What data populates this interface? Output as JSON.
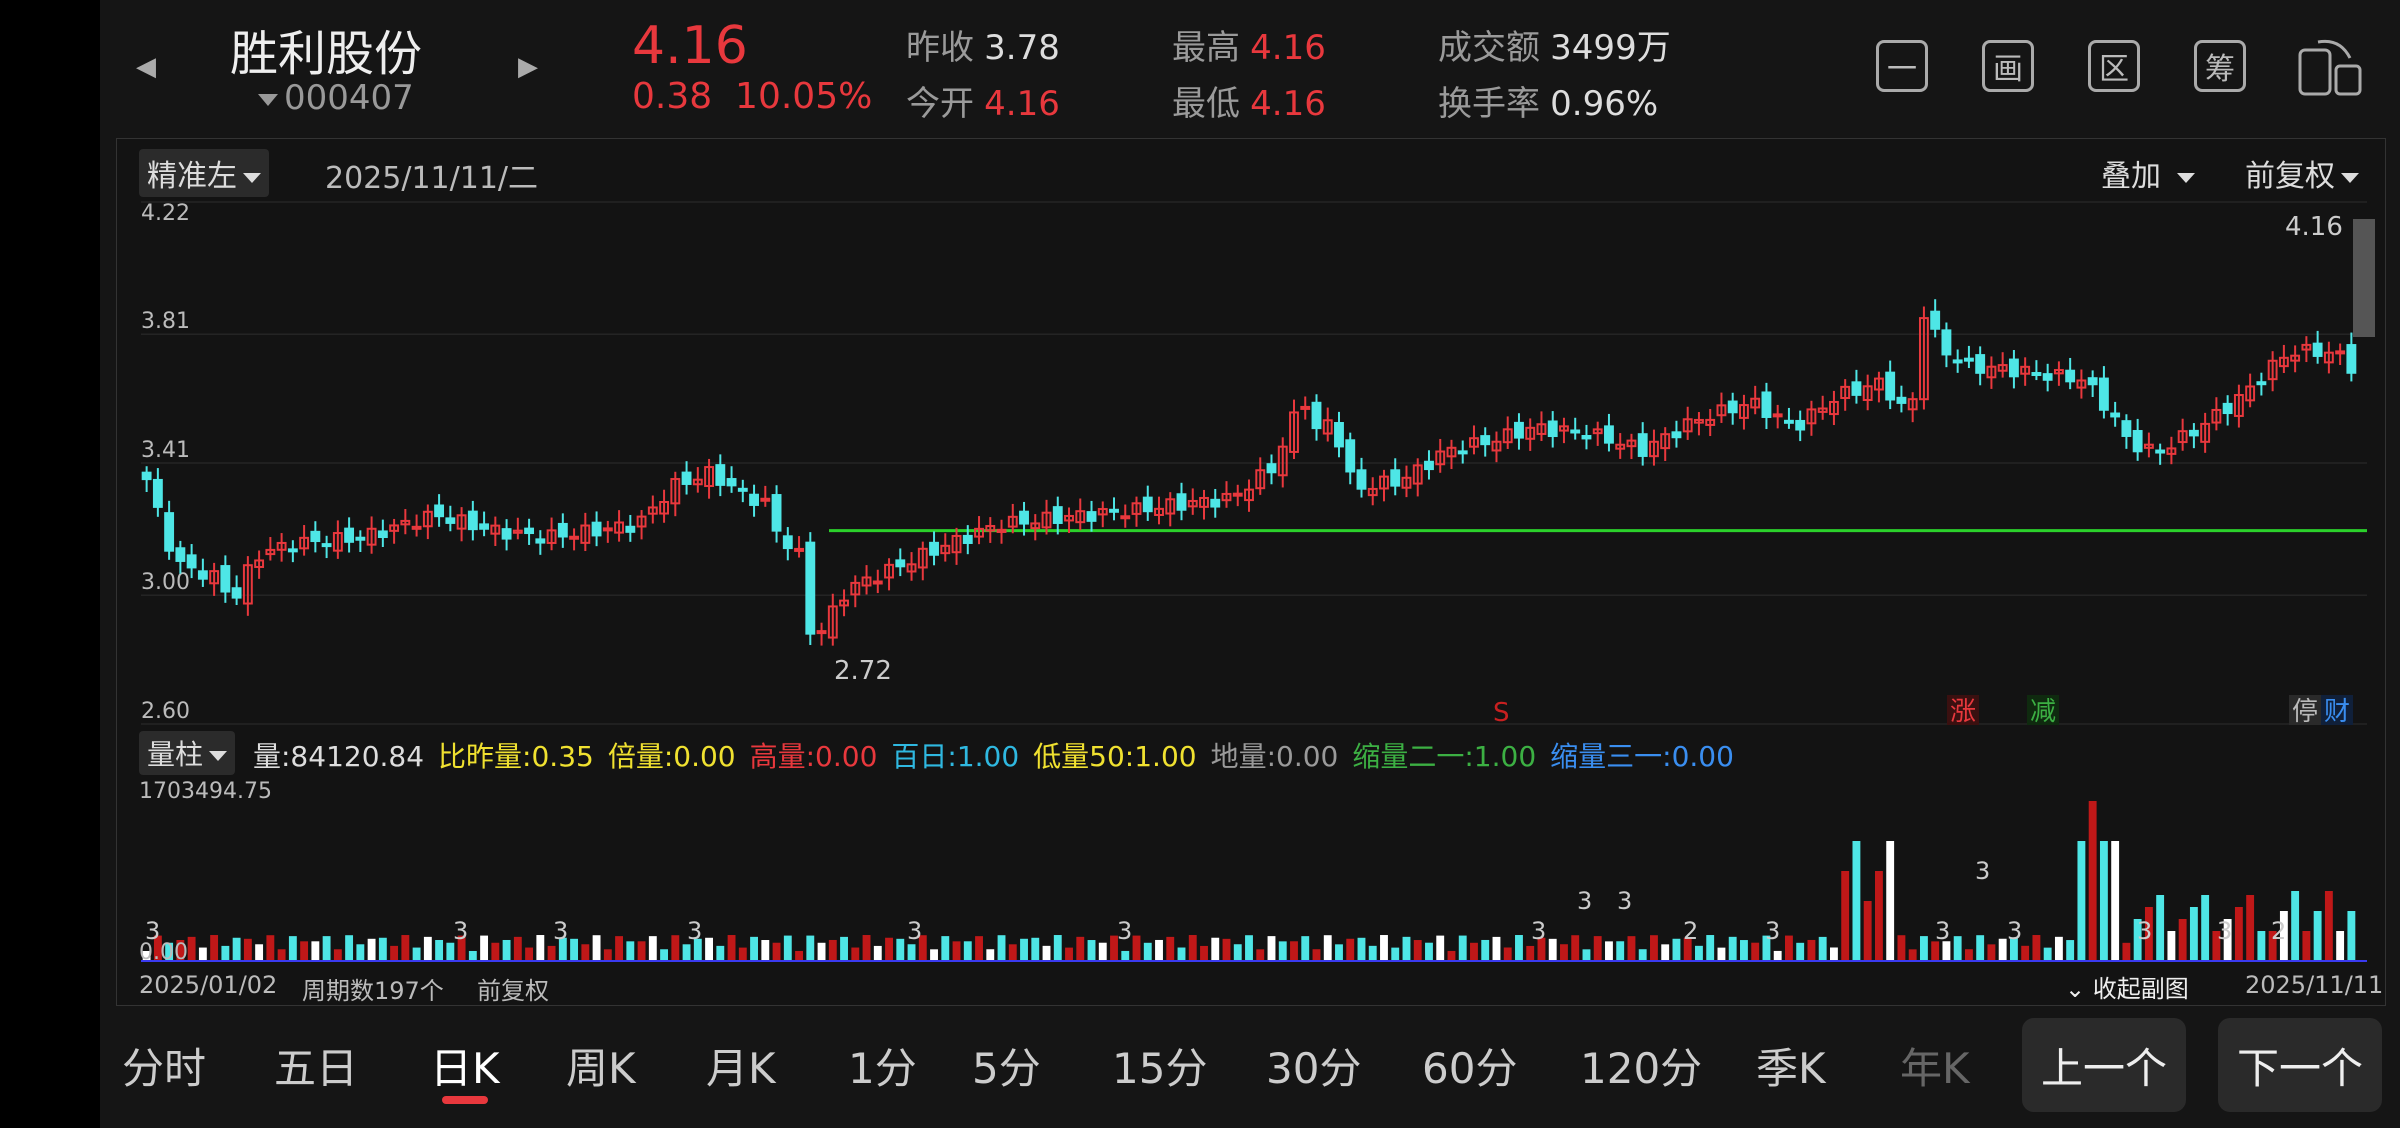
{
  "header": {
    "stock_name": "胜利股份",
    "stock_code": "000407",
    "price": "4.16",
    "change": "0.38",
    "change_pct": "10.05%",
    "prev_close_label": "昨收",
    "prev_close": "3.78",
    "open_label": "今开",
    "open": "4.16",
    "high_label": "最高",
    "high": "4.16",
    "low_label": "最低",
    "low": "4.16",
    "turnover_amount_label": "成交额",
    "turnover_amount": "3499万",
    "turnover_rate_label": "换手率",
    "turnover_rate": "0.96%",
    "tools": [
      "一",
      "画",
      "区",
      "筹"
    ]
  },
  "chart_header": {
    "mode": "精准左",
    "date": "2025/11/11/二",
    "overlay": "叠加",
    "adjust": "前复权"
  },
  "chart_labels": {
    "low_mark": "2.72",
    "last_price": "4.16",
    "signal_s": "S",
    "tag_up": "涨",
    "tag_reduce": "减",
    "tag_halt": "停",
    "tag_fin": "财"
  },
  "volume_header": {
    "mode": "量柱",
    "items": [
      {
        "label": "量:84120.84",
        "color": "#dddddd"
      },
      {
        "label": "比昨量:0.35",
        "color": "#f0e130"
      },
      {
        "label": "倍量:0.00",
        "color": "#f0e130"
      },
      {
        "label": "高量:0.00",
        "color": "#e8383d"
      },
      {
        "label": "百日:1.00",
        "color": "#2fb8e0"
      },
      {
        "label": "低量50:1.00",
        "color": "#f0e130"
      },
      {
        "label": "地量:0.00",
        "color": "#9a9a9a"
      },
      {
        "label": "缩量二一:1.00",
        "color": "#3cb043"
      },
      {
        "label": "缩量三一:0.00",
        "color": "#3a8ef0"
      }
    ],
    "max_label": "1703494.75",
    "min_label": "0.00"
  },
  "footer": {
    "start_date": "2025/01/02",
    "periods": "周期数197个",
    "adjust": "前复权",
    "collapse": "收起副图",
    "end_date": "2025/11/11"
  },
  "tabs": [
    "分时",
    "五日",
    "日K",
    "周K",
    "月K",
    "1分",
    "5分",
    "15分",
    "30分",
    "60分",
    "120分",
    "季K",
    "年K"
  ],
  "active_tab": "日K",
  "prev_button": "上一个",
  "next_button": "下一个",
  "chart_data": {
    "type": "candlestick",
    "title": "",
    "ylim": [
      2.6,
      4.22
    ],
    "y_ticks": [
      "4.22",
      "3.81",
      "3.41",
      "3.00",
      "2.60"
    ],
    "support_line": 3.2,
    "bar_count": 197,
    "close_series": [
      [
        0,
        3.36
      ],
      [
        4,
        3.1
      ],
      [
        10,
        3.05
      ],
      [
        12,
        2.98
      ],
      [
        15,
        3.12
      ],
      [
        20,
        3.16
      ],
      [
        30,
        3.18
      ],
      [
        40,
        3.25
      ],
      [
        48,
        3.2
      ],
      [
        55,
        3.18
      ],
      [
        62,
        3.2
      ],
      [
        68,
        3.22
      ],
      [
        73,
        3.34
      ],
      [
        78,
        3.38
      ],
      [
        82,
        3.32
      ],
      [
        86,
        3.28
      ],
      [
        88,
        3.14
      ],
      [
        90,
        3.2
      ],
      [
        91,
        2.9
      ],
      [
        93,
        2.88
      ],
      [
        97,
        3.02
      ],
      [
        103,
        3.08
      ],
      [
        110,
        3.15
      ],
      [
        118,
        3.22
      ],
      [
        126,
        3.24
      ],
      [
        135,
        3.26
      ],
      [
        142,
        3.28
      ],
      [
        150,
        3.3
      ],
      [
        156,
        3.4
      ],
      [
        160,
        3.62
      ],
      [
        162,
        3.5
      ],
      [
        164,
        3.55
      ],
      [
        167,
        3.33
      ],
      [
        174,
        3.36
      ],
      [
        180,
        3.45
      ],
      [
        186,
        3.48
      ],
      [
        192,
        3.52
      ],
      [
        200,
        3.5
      ],
      [
        207,
        3.45
      ],
      [
        214,
        3.54
      ],
      [
        222,
        3.6
      ],
      [
        228,
        3.52
      ],
      [
        234,
        3.62
      ],
      [
        240,
        3.66
      ],
      [
        244,
        3.55
      ],
      [
        246,
        3.9
      ],
      [
        248,
        3.77
      ],
      [
        252,
        3.71
      ],
      [
        258,
        3.7
      ],
      [
        264,
        3.68
      ],
      [
        268,
        3.67
      ],
      [
        272,
        3.56
      ],
      [
        274,
        3.48
      ],
      [
        278,
        3.44
      ],
      [
        284,
        3.52
      ],
      [
        290,
        3.62
      ],
      [
        296,
        3.75
      ],
      [
        300,
        3.76
      ],
      [
        304,
        3.74
      ],
      [
        305,
        3.71
      ]
    ],
    "volume_markers": [
      "3",
      "3",
      "3",
      "3",
      "3",
      "3",
      "3",
      "3",
      "3",
      "2",
      "3",
      "3",
      "3",
      "3",
      "3",
      "3",
      "2"
    ]
  }
}
